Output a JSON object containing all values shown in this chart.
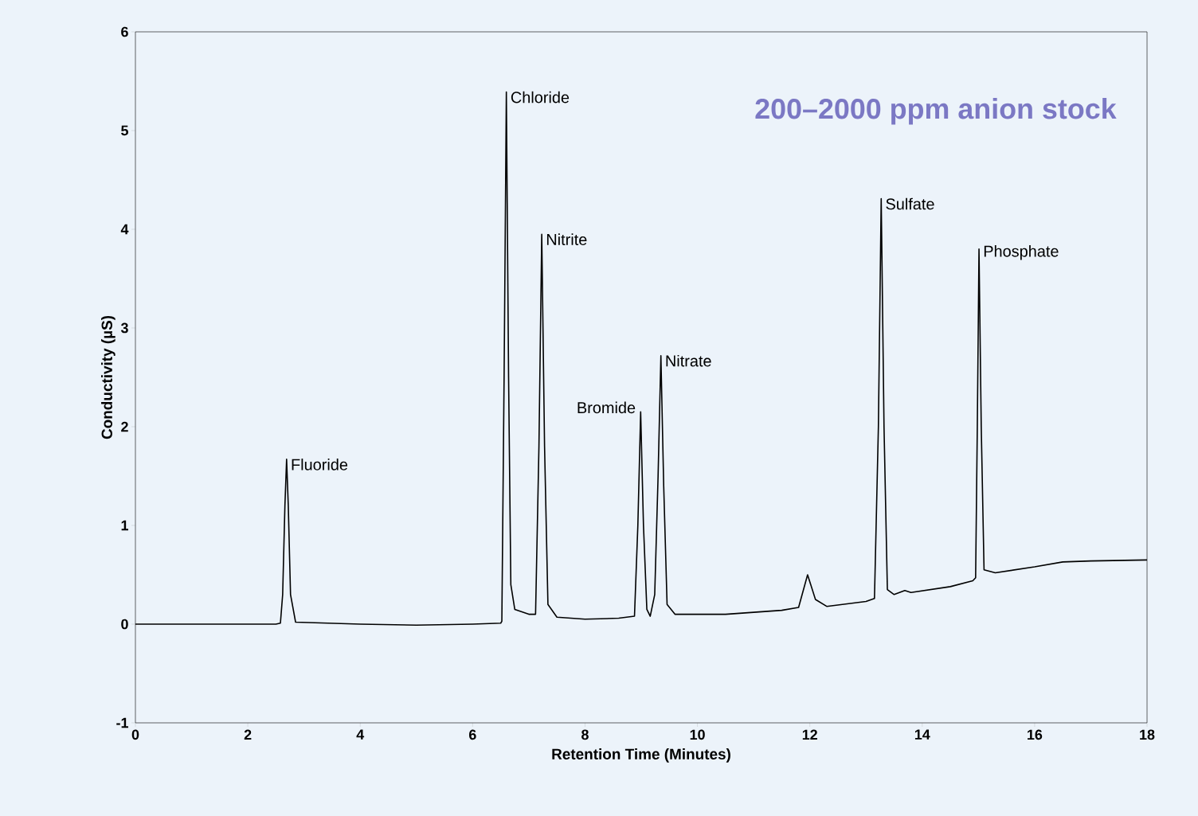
{
  "chart_data": {
    "type": "line",
    "title": "200–2000 ppm anion stock",
    "xlabel": "Retention Time (Minutes)",
    "ylabel": "Conductivity (µS)",
    "xlim": [
      0,
      18
    ],
    "ylim": [
      -1,
      6
    ],
    "xticks": [
      0,
      2,
      4,
      6,
      8,
      10,
      12,
      14,
      16,
      18
    ],
    "yticks": [
      -1,
      0,
      1,
      2,
      3,
      4,
      5,
      6
    ],
    "grid": false,
    "marker": "none",
    "line_style": "solid",
    "x": [
      0,
      2.5,
      2.58,
      2.62,
      2.66,
      2.69,
      2.72,
      2.76,
      2.85,
      4,
      5,
      6,
      6.5,
      6.52,
      6.56,
      6.6,
      6.64,
      6.68,
      6.75,
      7.0,
      7.12,
      7.18,
      7.23,
      7.28,
      7.34,
      7.5,
      8.0,
      8.6,
      8.88,
      8.94,
      8.99,
      9.04,
      9.1,
      9.16,
      9.24,
      9.3,
      9.35,
      9.4,
      9.46,
      9.6,
      10.5,
      11.5,
      11.8,
      11.96,
      12.1,
      12.3,
      13,
      13.15,
      13.22,
      13.27,
      13.32,
      13.38,
      13.5,
      13.69,
      13.8,
      14.5,
      14.9,
      14.95,
      14.98,
      15.01,
      15.05,
      15.1,
      15.3,
      16,
      16.5,
      17,
      18
    ],
    "series": [
      {
        "color": "#000000",
        "values": [
          0,
          0,
          0.01,
          0.3,
          1.2,
          1.67,
          1.2,
          0.3,
          0.02,
          0,
          -0.01,
          0,
          0.01,
          0.03,
          2.5,
          5.39,
          2.5,
          0.4,
          0.15,
          0.1,
          0.1,
          1.8,
          3.95,
          1.8,
          0.2,
          0.07,
          0.05,
          0.06,
          0.08,
          1.0,
          2.15,
          1.0,
          0.15,
          0.08,
          0.3,
          1.5,
          2.72,
          1.4,
          0.2,
          0.1,
          0.1,
          0.14,
          0.17,
          0.5,
          0.25,
          0.18,
          0.23,
          0.26,
          2.0,
          4.31,
          2.0,
          0.35,
          0.3,
          0.34,
          0.32,
          0.38,
          0.44,
          0.47,
          2.0,
          3.8,
          2.0,
          0.55,
          0.52,
          0.58,
          0.63,
          0.64,
          0.65
        ]
      }
    ],
    "annotations": [
      {
        "text": "Fluoride",
        "x": 2.69,
        "y": 1.67
      },
      {
        "text": "Chloride",
        "x": 6.6,
        "y": 5.39
      },
      {
        "text": "Nitrite",
        "x": 7.23,
        "y": 3.95
      },
      {
        "text": "Bromide",
        "x": 8.99,
        "y": 2.15
      },
      {
        "text": "Nitrate",
        "x": 9.35,
        "y": 2.72
      },
      {
        "text": "Sulfate",
        "x": 13.27,
        "y": 4.31
      },
      {
        "text": "Phosphate",
        "x": 15.01,
        "y": 3.8
      }
    ]
  }
}
